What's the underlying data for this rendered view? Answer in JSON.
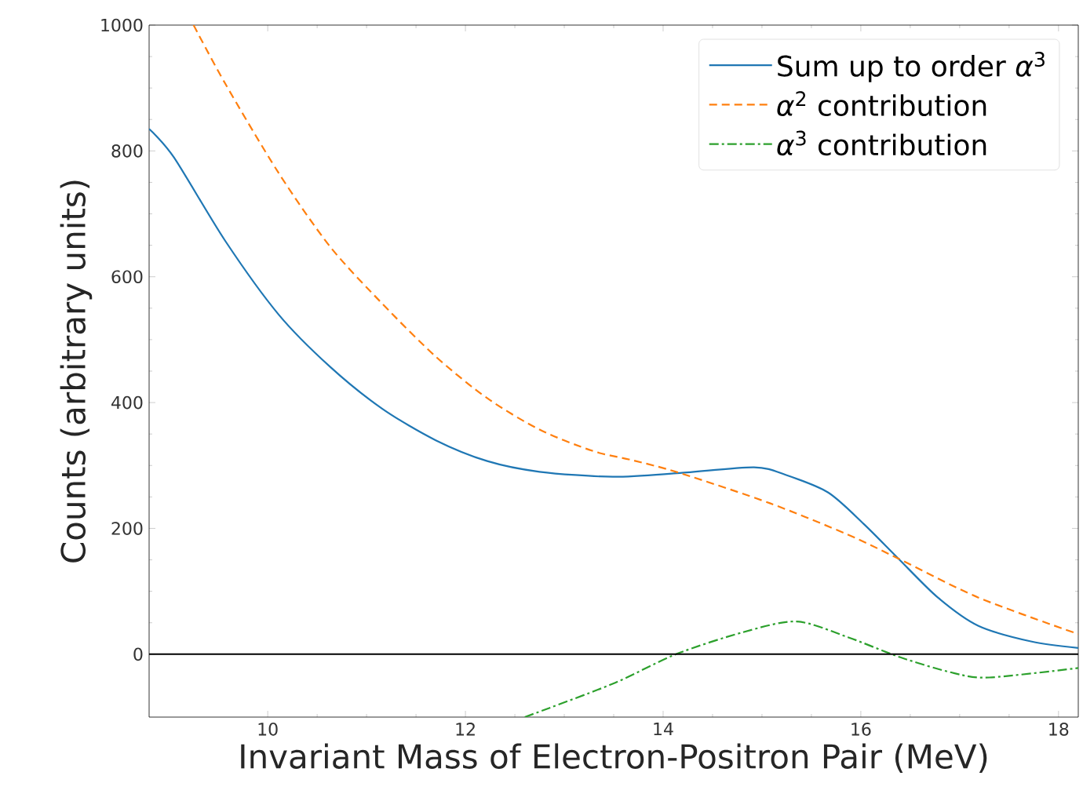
{
  "chart_data": {
    "type": "line",
    "xlabel": "Invariant Mass of Electron-Positron Pair (MeV)",
    "ylabel": "Counts (arbitrary units)",
    "xlim": [
      8.8,
      18.2
    ],
    "ylim": [
      -100,
      1000
    ],
    "xticks": [
      10,
      12,
      14,
      16,
      18
    ],
    "yticks": [
      0,
      200,
      400,
      600,
      800,
      1000
    ],
    "legend": "top right",
    "grid": false,
    "ref_lines": [
      {
        "axis": "y",
        "value": 0,
        "color": "#000000",
        "line_style": "solid"
      }
    ],
    "series": [
      {
        "name": "Sum up to order *α*$^{3}$",
        "color": "#1f77b4",
        "line_style": "solid",
        "x": [
          8.8,
          9.05,
          9.57,
          10.11,
          10.63,
          11.16,
          11.7,
          12.22,
          12.75,
          13.49,
          14.17,
          14.92,
          15.24,
          15.67,
          16.03,
          16.38,
          16.78,
          17.19,
          17.73,
          18.2
        ],
        "values": [
          835,
          790,
          657,
          540,
          457,
          390,
          340,
          307,
          290,
          282,
          288,
          297,
          285,
          257,
          207,
          152,
          90,
          45,
          20,
          10
        ]
      },
      {
        "name": "*α*$^{2}$ contribution",
        "color": "#ff7f0e",
        "line_style": "dashed",
        "x": [
          9.25,
          9.57,
          10.11,
          10.63,
          11.16,
          11.7,
          12.22,
          12.75,
          13.29,
          13.7,
          14.17,
          15.08,
          15.87,
          16.38,
          17.19,
          18.2
        ],
        "values": [
          1000,
          907,
          765,
          648,
          557,
          473,
          407,
          357,
          323,
          308,
          288,
          240,
          190,
          152,
          90,
          32
        ]
      },
      {
        "name": "*α*$^{3}$ contribution",
        "color": "#2ca02c",
        "line_style": "dashdot",
        "x": [
          12.6,
          13.49,
          14.13,
          14.81,
          15.35,
          15.87,
          16.4,
          16.94,
          17.3,
          18.2
        ],
        "values": [
          -100,
          -47,
          0,
          35,
          52,
          27,
          -5,
          -30,
          -37,
          -22
        ]
      }
    ]
  }
}
